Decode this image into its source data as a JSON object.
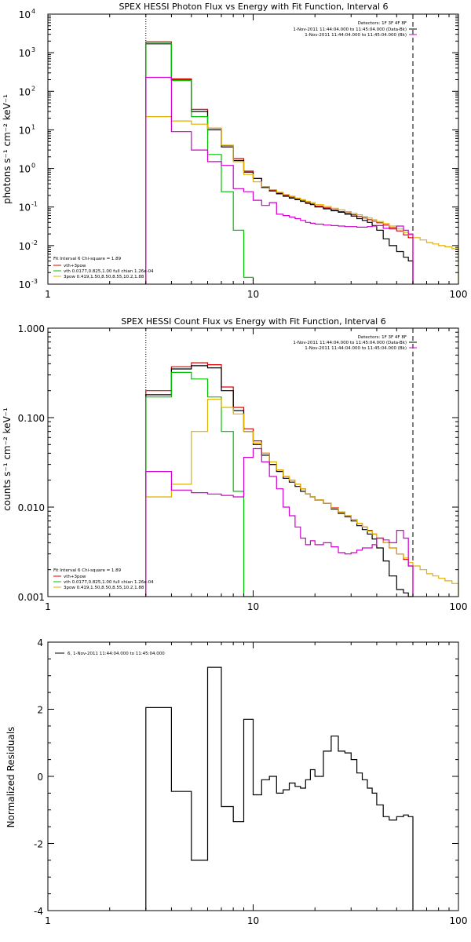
{
  "chart_data": [
    {
      "type": "line",
      "title": "SPEX HESSI Photon Flux vs Energy with Fit Function, Interval 6",
      "xlabel": "",
      "ylabel": "photons s⁻¹ cm⁻² keV⁻¹",
      "xscale": "log",
      "yscale": "log",
      "xlim": [
        1,
        100
      ],
      "ylim": [
        0.001,
        10000
      ],
      "x_ticks": [
        "1",
        "10",
        "100"
      ],
      "y_ticks": [
        {
          "base": "10",
          "exp": "-3"
        },
        {
          "base": "10",
          "exp": "-2"
        },
        {
          "base": "10",
          "exp": "-1"
        },
        {
          "base": "10",
          "exp": "0"
        },
        {
          "base": "10",
          "exp": "1"
        },
        {
          "base": "10",
          "exp": "2"
        },
        {
          "base": "10",
          "exp": "3"
        },
        {
          "base": "10",
          "exp": "4"
        }
      ],
      "vlines": [
        {
          "x": 3,
          "style": "dotted"
        },
        {
          "x": 60,
          "style": "dashed"
        }
      ],
      "legend_top": [
        "Detectors: 1F 3F 4F 8F",
        "1-Nov-2011 11:44:04.000 to 11:45:04.000 (Data-Bk)",
        "1-Nov-2011 11:44:04.000 to 11:45:04.000 (Bk)"
      ],
      "legend_fit": [
        "Fit Interval 6   Chi-square = 1.89",
        "vth+3pow",
        "vth 0.0177,0.825,1.00  full chian 1.26e-04",
        "3pow 0.419,1.50,8.50,8.55,10.2,1.88"
      ],
      "series": [
        {
          "name": "vth+3pow",
          "color": "#e00000",
          "edges": [
            3,
            4,
            5,
            6,
            7,
            8,
            9,
            10,
            11,
            12,
            13,
            14,
            15,
            16,
            17,
            18,
            19,
            20,
            22,
            24,
            26,
            28,
            30,
            32,
            34,
            36,
            38,
            40,
            43,
            46,
            50,
            54,
            57,
            60
          ],
          "values": [
            1900,
            210,
            34,
            11,
            3.9,
            1.8,
            0.85,
            0.55,
            0.34,
            0.27,
            0.23,
            0.2,
            0.18,
            0.16,
            0.145,
            0.13,
            0.12,
            0.105,
            0.095,
            0.085,
            0.076,
            0.07,
            0.063,
            0.057,
            0.052,
            0.047,
            0.043,
            0.039,
            0.034,
            0.029,
            0.024,
            0.019,
            0.016
          ]
        },
        {
          "name": "Data-Bk",
          "color": "#000000",
          "edges": [
            3,
            4,
            5,
            6,
            7,
            8,
            9,
            10,
            11,
            12,
            13,
            14,
            15,
            16,
            17,
            18,
            19,
            20,
            22,
            24,
            26,
            28,
            30,
            32,
            34,
            36,
            38,
            40,
            43,
            46,
            50,
            54,
            57,
            60
          ],
          "values": [
            1700,
            195,
            30,
            10,
            3.6,
            1.6,
            0.8,
            0.55,
            0.32,
            0.26,
            0.22,
            0.19,
            0.17,
            0.155,
            0.14,
            0.125,
            0.115,
            0.1,
            0.09,
            0.08,
            0.073,
            0.065,
            0.058,
            0.05,
            0.045,
            0.04,
            0.033,
            0.025,
            0.015,
            0.01,
            0.007,
            0.005,
            0.004
          ]
        },
        {
          "name": "vth",
          "color": "#00c000",
          "edges": [
            3,
            4,
            5,
            6,
            7,
            8,
            9,
            10
          ],
          "values": [
            1750,
            190,
            22,
            2.3,
            0.25,
            0.025,
            0.0015
          ]
        },
        {
          "name": "3pow",
          "color": "#e0b000",
          "edges": [
            3,
            4,
            5,
            6,
            7,
            8,
            9,
            10,
            11,
            12,
            13,
            14,
            15,
            16,
            17,
            18,
            19,
            20,
            22,
            24,
            26,
            28,
            30,
            32,
            34,
            36,
            38,
            40,
            43,
            46,
            50,
            54,
            57,
            60,
            65,
            70,
            75,
            80,
            86,
            93,
            100
          ],
          "values": [
            22,
            17,
            14,
            11,
            4.0,
            1.5,
            0.7,
            0.45,
            0.34,
            0.28,
            0.24,
            0.21,
            0.19,
            0.17,
            0.155,
            0.14,
            0.13,
            0.115,
            0.103,
            0.093,
            0.084,
            0.076,
            0.069,
            0.063,
            0.057,
            0.052,
            0.047,
            0.042,
            0.037,
            0.032,
            0.027,
            0.022,
            0.019,
            0.016,
            0.014,
            0.012,
            0.011,
            0.01,
            0.0093,
            0.0083
          ]
        },
        {
          "name": "Bk",
          "color": "#d000d0",
          "edges": [
            3,
            4,
            5,
            6,
            7,
            8,
            9,
            10,
            11,
            12,
            13,
            14,
            15,
            16,
            17,
            18,
            19,
            20,
            22,
            24,
            26,
            28,
            30,
            32,
            34,
            36,
            38,
            40,
            43,
            46,
            50,
            54,
            57,
            60
          ],
          "values": [
            230,
            9,
            3,
            1.5,
            1.2,
            0.3,
            0.25,
            0.15,
            0.11,
            0.13,
            0.065,
            0.06,
            0.055,
            0.05,
            0.045,
            0.04,
            0.038,
            0.036,
            0.034,
            0.033,
            0.032,
            0.031,
            0.031,
            0.03,
            0.03,
            0.031,
            0.032,
            0.033,
            0.028,
            0.027,
            0.032,
            0.025,
            0.02
          ]
        }
      ]
    },
    {
      "type": "line",
      "title": "SPEX HESSI Count Flux vs Energy with Fit Function, Interval 6",
      "xlabel": "",
      "ylabel": "counts s⁻¹ cm⁻² keV⁻¹",
      "xscale": "log",
      "yscale": "log",
      "xlim": [
        1,
        100
      ],
      "ylim": [
        0.001,
        1.0
      ],
      "x_ticks": [
        "1",
        "10",
        "100"
      ],
      "y_ticks": [
        "0.001",
        "0.010",
        "0.100",
        "1.000"
      ],
      "vlines": [
        {
          "x": 3,
          "style": "dotted"
        },
        {
          "x": 60,
          "style": "dashed"
        }
      ],
      "legend_top": [
        "Detectors: 1F 3F 4F 8F",
        "1-Nov-2011 11:44:04.000 to 11:45:04.000 (Data-Bk)",
        "1-Nov-2011 11:44:04.000 to 11:45:04.000 (Bk)"
      ],
      "legend_fit": [
        "Fit Interval 6   Chi-square = 1.89",
        "vth+3pow",
        "vth 0.0177,0.825,1.00  full chian 1.26e-04",
        "3pow 0.419,1.50,8.50,8.55,10.2,1.88"
      ],
      "series": [
        {
          "name": "vth+3pow",
          "color": "#e00000",
          "edges": [
            3,
            4,
            5,
            6,
            7,
            8,
            9,
            10,
            11,
            12,
            13,
            14,
            15,
            16,
            17,
            18,
            19,
            20,
            22,
            24,
            26,
            28,
            30,
            32,
            34,
            36,
            38,
            40,
            43,
            46,
            50,
            54,
            57,
            60
          ],
          "values": [
            0.2,
            0.37,
            0.41,
            0.39,
            0.22,
            0.13,
            0.075,
            0.055,
            0.04,
            0.03,
            0.026,
            0.022,
            0.02,
            0.018,
            0.016,
            0.014,
            0.013,
            0.012,
            0.011,
            0.0098,
            0.0088,
            0.008,
            0.0073,
            0.0066,
            0.006,
            0.0055,
            0.005,
            0.0045,
            0.004,
            0.0035,
            0.003,
            0.0026,
            0.0022
          ]
        },
        {
          "name": "Data-Bk",
          "color": "#000000",
          "edges": [
            3,
            4,
            5,
            6,
            7,
            8,
            9,
            10,
            11,
            12,
            13,
            14,
            15,
            16,
            17,
            18,
            19,
            20,
            22,
            24,
            26,
            28,
            30,
            32,
            34,
            36,
            38,
            40,
            43,
            46,
            50,
            54,
            57,
            60
          ],
          "values": [
            0.18,
            0.35,
            0.38,
            0.36,
            0.2,
            0.12,
            0.07,
            0.05,
            0.038,
            0.03,
            0.025,
            0.021,
            0.019,
            0.017,
            0.015,
            0.014,
            0.013,
            0.012,
            0.011,
            0.0095,
            0.0085,
            0.0078,
            0.007,
            0.0062,
            0.0056,
            0.005,
            0.0044,
            0.0035,
            0.0025,
            0.0017,
            0.0012,
            0.0011,
            0.001
          ]
        },
        {
          "name": "vth",
          "color": "#00c000",
          "edges": [
            3,
            4,
            5,
            6,
            7,
            8,
            9,
            10
          ],
          "values": [
            0.17,
            0.32,
            0.27,
            0.17,
            0.07,
            0.015,
            0.001
          ]
        },
        {
          "name": "3pow",
          "color": "#e0b000",
          "edges": [
            3,
            4,
            5,
            6,
            7,
            8,
            9,
            10,
            11,
            12,
            13,
            14,
            15,
            16,
            17,
            18,
            19,
            20,
            22,
            24,
            26,
            28,
            30,
            32,
            34,
            36,
            38,
            40,
            43,
            46,
            50,
            54,
            57,
            60,
            65,
            70,
            75,
            80,
            86,
            93,
            100
          ],
          "values": [
            0.013,
            0.018,
            0.07,
            0.16,
            0.13,
            0.11,
            0.07,
            0.052,
            0.04,
            0.032,
            0.026,
            0.022,
            0.02,
            0.018,
            0.016,
            0.014,
            0.013,
            0.012,
            0.011,
            0.0097,
            0.0088,
            0.008,
            0.0073,
            0.0066,
            0.006,
            0.0054,
            0.005,
            0.0045,
            0.004,
            0.0035,
            0.003,
            0.0027,
            0.0024,
            0.0022,
            0.002,
            0.0018,
            0.0017,
            0.0016,
            0.0015,
            0.0014
          ]
        },
        {
          "name": "Bk",
          "color": "#d000d0",
          "edges": [
            3,
            4,
            5,
            6,
            7,
            8,
            9,
            10,
            11,
            12,
            13,
            14,
            15,
            16,
            17,
            18,
            19,
            20,
            22,
            24,
            26,
            28,
            30,
            32,
            34,
            36,
            38,
            40,
            43,
            46,
            50,
            54,
            57,
            60
          ],
          "values": [
            0.025,
            0.0155,
            0.0145,
            0.014,
            0.0135,
            0.013,
            0.036,
            0.045,
            0.032,
            0.022,
            0.016,
            0.01,
            0.008,
            0.006,
            0.0045,
            0.0038,
            0.0042,
            0.0038,
            0.004,
            0.0036,
            0.0031,
            0.003,
            0.0031,
            0.0033,
            0.0035,
            0.0035,
            0.0038,
            0.0045,
            0.0043,
            0.004,
            0.0055,
            0.0045,
            0.0022
          ]
        }
      ]
    },
    {
      "type": "line",
      "title": "",
      "xlabel": "",
      "ylabel": "Normalized Residuals",
      "xscale": "log",
      "yscale": "linear",
      "xlim": [
        1,
        100
      ],
      "ylim": [
        -4,
        4
      ],
      "x_ticks": [
        "1",
        "10",
        "100"
      ],
      "y_ticks": [
        "-4",
        "-2",
        "0",
        "2",
        "4"
      ],
      "legend": [
        "6, 1-Nov-2011 11:44:04.000 to 11:45:04.000"
      ],
      "series": [
        {
          "name": "6, 1-Nov-2011 11:44:04.000 to 11:45:04.000",
          "color": "#000000",
          "edges": [
            3,
            4,
            5,
            6,
            7,
            8,
            9,
            10,
            11,
            12,
            13,
            14,
            15,
            16,
            17,
            18,
            19,
            20,
            22,
            24,
            26,
            28,
            30,
            32,
            34,
            36,
            38,
            40,
            43,
            46,
            50,
            54,
            57,
            60
          ],
          "values": [
            2.05,
            -0.45,
            -2.5,
            3.25,
            -0.9,
            -1.35,
            1.7,
            -0.55,
            -0.1,
            0.0,
            -0.5,
            -0.4,
            -0.2,
            -0.3,
            -0.35,
            -0.1,
            0.2,
            0.0,
            0.75,
            1.2,
            0.75,
            0.7,
            0.5,
            0.1,
            -0.1,
            -0.35,
            -0.5,
            -0.85,
            -1.2,
            -1.3,
            -1.2,
            -1.15,
            -1.2
          ]
        }
      ]
    }
  ]
}
